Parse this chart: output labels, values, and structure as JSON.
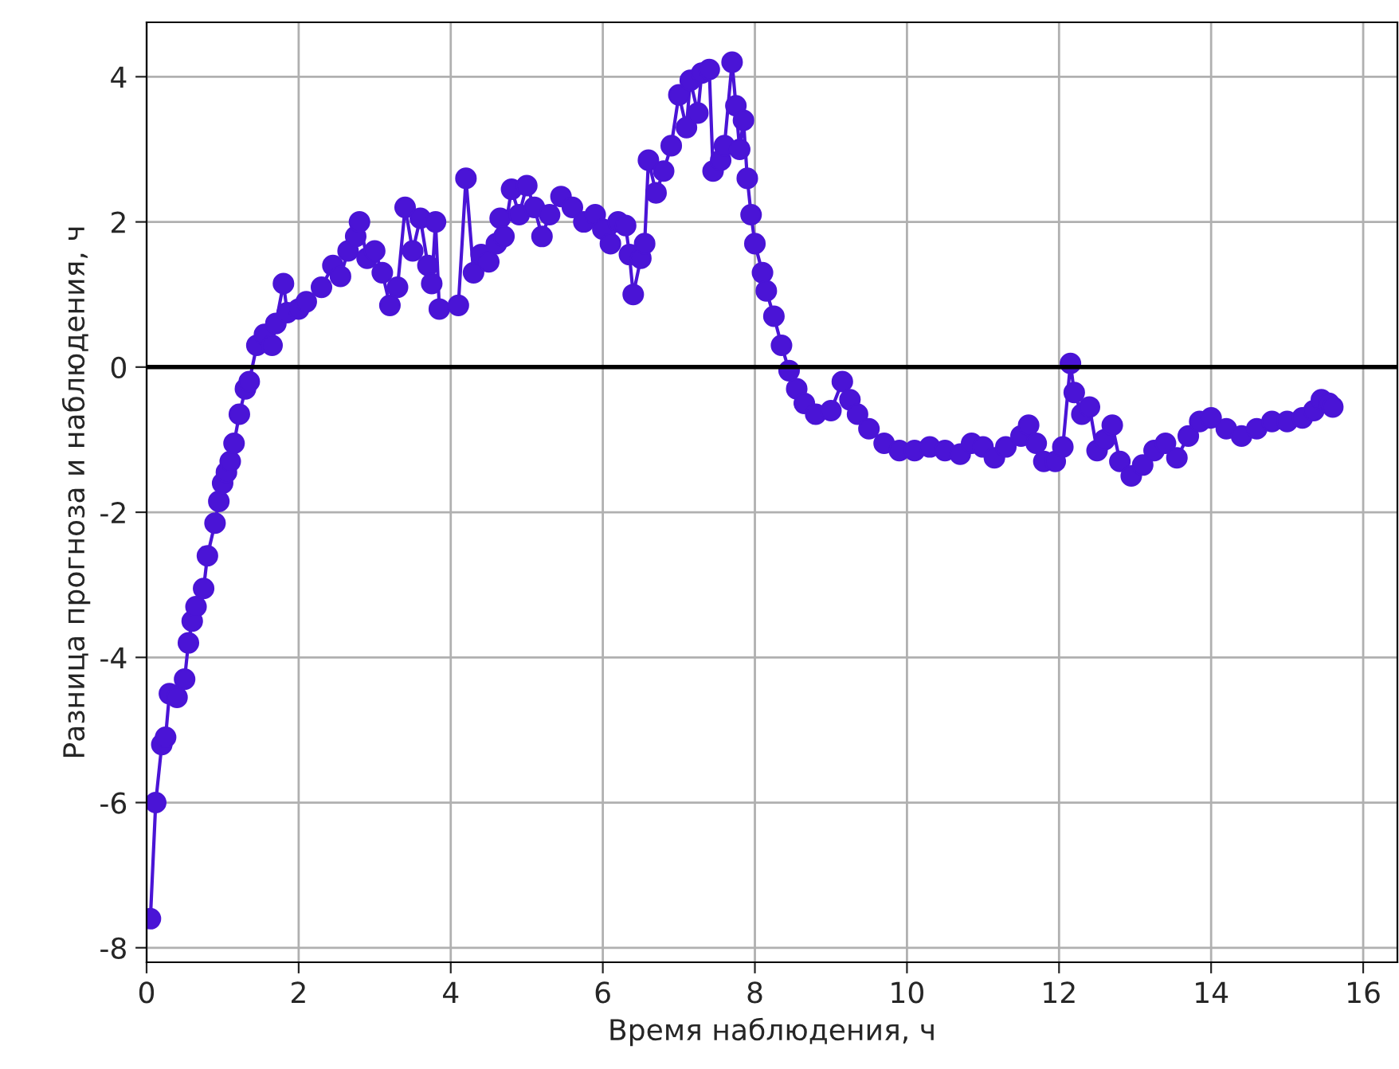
{
  "chart_data": {
    "type": "line",
    "xlabel": "Время наблюдения, ч",
    "ylabel": "Разница прогноза и наблюдения, ч",
    "xlim": [
      0,
      16.45
    ],
    "ylim": [
      -8.2,
      4.75
    ],
    "xticks": [
      0,
      2,
      4,
      6,
      8,
      10,
      12,
      14,
      16
    ],
    "yticks": [
      -8,
      -6,
      -4,
      -2,
      0,
      2,
      4
    ],
    "grid": true,
    "marker": "circle",
    "line_style": "solid",
    "ref_lines": [
      {
        "axis": "y",
        "value": 0,
        "color": "#000000"
      }
    ],
    "series": [
      {
        "color": "#4a14d6",
        "x": [
          0.05,
          0.12,
          0.2,
          0.25,
          0.3,
          0.4,
          0.5,
          0.55,
          0.6,
          0.65,
          0.75,
          0.8,
          0.9,
          0.95,
          1.0,
          1.05,
          1.1,
          1.15,
          1.22,
          1.3,
          1.35,
          1.45,
          1.55,
          1.65,
          1.7,
          1.8,
          1.85,
          2.0,
          2.1,
          2.3,
          2.45,
          2.55,
          2.65,
          2.75,
          2.8,
          2.9,
          3.0,
          3.1,
          3.2,
          3.3,
          3.4,
          3.5,
          3.6,
          3.7,
          3.75,
          3.8,
          3.85,
          4.1,
          4.2,
          4.3,
          4.4,
          4.5,
          4.6,
          4.65,
          4.7,
          4.8,
          4.9,
          5.0,
          5.1,
          5.2,
          5.3,
          5.45,
          5.6,
          5.75,
          5.9,
          6.0,
          6.1,
          6.2,
          6.3,
          6.35,
          6.4,
          6.5,
          6.55,
          6.6,
          6.7,
          6.8,
          6.9,
          7.0,
          7.1,
          7.15,
          7.25,
          7.3,
          7.4,
          7.45,
          7.55,
          7.6,
          7.7,
          7.75,
          7.8,
          7.85,
          7.9,
          7.95,
          8.0,
          8.1,
          8.15,
          8.25,
          8.35,
          8.45,
          8.55,
          8.65,
          8.8,
          9.0,
          9.15,
          9.25,
          9.35,
          9.5,
          9.7,
          9.9,
          10.1,
          10.3,
          10.5,
          10.7,
          10.85,
          11.0,
          11.15,
          11.3,
          11.5,
          11.6,
          11.7,
          11.8,
          11.95,
          12.05,
          12.15,
          12.2,
          12.3,
          12.4,
          12.5,
          12.6,
          12.7,
          12.8,
          12.95,
          13.1,
          13.25,
          13.4,
          13.55,
          13.7,
          13.85,
          14.0,
          14.2,
          14.4,
          14.6,
          14.8,
          15.0,
          15.2,
          15.35,
          15.45,
          15.55,
          15.6
        ],
        "values": [
          -7.6,
          -6.0,
          -5.2,
          -5.1,
          -4.5,
          -4.55,
          -4.3,
          -3.8,
          -3.5,
          -3.3,
          -3.05,
          -2.6,
          -2.15,
          -1.85,
          -1.6,
          -1.45,
          -1.3,
          -1.05,
          -0.65,
          -0.3,
          -0.2,
          0.3,
          0.45,
          0.3,
          0.6,
          1.15,
          0.75,
          0.8,
          0.9,
          1.1,
          1.4,
          1.25,
          1.6,
          1.8,
          2.0,
          1.5,
          1.6,
          1.3,
          0.85,
          1.1,
          2.2,
          1.6,
          2.05,
          1.4,
          1.15,
          2.0,
          0.8,
          0.85,
          2.6,
          1.3,
          1.55,
          1.45,
          1.7,
          2.05,
          1.8,
          2.45,
          2.1,
          2.5,
          2.2,
          1.8,
          2.1,
          2.35,
          2.2,
          2.0,
          2.1,
          1.9,
          1.7,
          2.0,
          1.95,
          1.55,
          1.0,
          1.5,
          1.7,
          2.85,
          2.4,
          2.7,
          3.05,
          3.75,
          3.3,
          3.95,
          3.5,
          4.05,
          4.1,
          2.7,
          2.85,
          3.05,
          4.2,
          3.6,
          3.0,
          3.4,
          2.6,
          2.1,
          1.7,
          1.3,
          1.05,
          0.7,
          0.3,
          -0.05,
          -0.3,
          -0.5,
          -0.65,
          -0.6,
          -0.2,
          -0.45,
          -0.65,
          -0.85,
          -1.05,
          -1.15,
          -1.15,
          -1.1,
          -1.15,
          -1.2,
          -1.05,
          -1.1,
          -1.25,
          -1.1,
          -0.95,
          -0.8,
          -1.05,
          -1.3,
          -1.3,
          -1.1,
          0.05,
          -0.35,
          -0.65,
          -0.55,
          -1.15,
          -1.0,
          -0.8,
          -1.3,
          -1.5,
          -1.35,
          -1.15,
          -1.05,
          -1.25,
          -0.95,
          -0.75,
          -0.7,
          -0.85,
          -0.95,
          -0.85,
          -0.75,
          -0.75,
          -0.7,
          -0.6,
          -0.45,
          -0.5,
          -0.55
        ]
      }
    ]
  }
}
